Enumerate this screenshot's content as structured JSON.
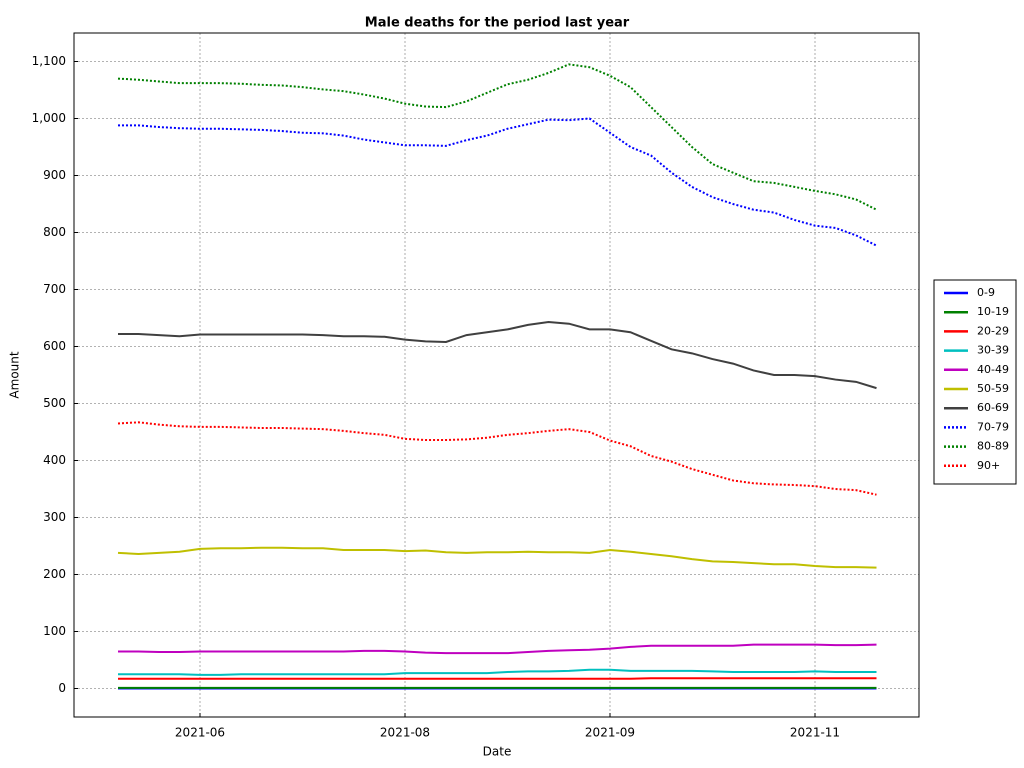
{
  "chart_data": {
    "type": "line",
    "title": "Male deaths for the period last year",
    "x_label": "Date",
    "y_label": "Amount",
    "categories": [
      null,
      null,
      null,
      null,
      "2021-06",
      null,
      null,
      null,
      null,
      null,
      null,
      null,
      null,
      null,
      "2021-08",
      null,
      null,
      null,
      null,
      null,
      null,
      null,
      null,
      null,
      "2021-09",
      null,
      null,
      null,
      null,
      null,
      null,
      null,
      null,
      null,
      "2021-11",
      null,
      null,
      null
    ],
    "ylim": [
      -50,
      1150
    ],
    "yticks": [
      0,
      100,
      200,
      300,
      400,
      500,
      600,
      700,
      800,
      900,
      {
        "value": 1000,
        "label": "1,000"
      },
      {
        "value": 1100,
        "label": "1,100"
      }
    ],
    "grid": true,
    "legend": "right",
    "series": [
      {
        "name": "0-9",
        "color": "#0000ff",
        "style": "solid",
        "values": [
          0,
          0,
          0,
          0,
          0,
          0,
          0,
          0,
          0,
          0,
          0,
          0,
          0,
          0,
          0,
          0,
          0,
          0,
          0,
          0,
          0,
          0,
          0,
          0,
          0,
          0,
          0,
          0,
          0,
          0,
          0,
          0,
          0,
          0,
          0,
          0,
          0,
          0
        ]
      },
      {
        "name": "10-19",
        "color": "#008000",
        "style": "solid",
        "values": [
          1,
          1,
          1,
          1,
          1,
          1,
          1,
          1,
          1,
          1,
          1,
          1,
          1,
          1,
          1,
          1,
          1,
          1,
          1,
          1,
          1,
          1,
          1,
          1,
          1,
          1,
          1,
          1,
          1,
          1,
          1,
          1,
          1,
          1,
          1,
          1,
          1,
          1
        ]
      },
      {
        "name": "20-29",
        "color": "#ff0000",
        "style": "solid",
        "values": [
          17,
          17,
          17,
          17,
          17,
          17,
          17,
          17,
          17,
          17,
          17,
          17,
          17,
          17,
          17,
          17,
          17,
          17,
          17,
          17,
          17,
          17,
          17,
          17,
          17,
          17,
          18,
          18,
          18,
          18,
          18,
          18,
          18,
          18,
          18,
          18,
          18,
          18
        ]
      },
      {
        "name": "30-39",
        "color": "#00bfbf",
        "style": "solid",
        "values": [
          25,
          25,
          25,
          25,
          24,
          24,
          25,
          25,
          25,
          25,
          25,
          25,
          25,
          25,
          27,
          27,
          27,
          27,
          27,
          29,
          30,
          30,
          31,
          33,
          33,
          31,
          31,
          31,
          31,
          30,
          29,
          29,
          29,
          29,
          30,
          29,
          29,
          29
        ]
      },
      {
        "name": "40-49",
        "color": "#bf00bf",
        "style": "solid",
        "values": [
          65,
          65,
          64,
          64,
          65,
          65,
          65,
          65,
          65,
          65,
          65,
          65,
          66,
          66,
          65,
          63,
          62,
          62,
          62,
          62,
          64,
          66,
          67,
          68,
          70,
          73,
          75,
          75,
          75,
          75,
          75,
          77,
          77,
          77,
          77,
          76,
          76,
          77
        ]
      },
      {
        "name": "50-59",
        "color": "#bfbf00",
        "style": "solid",
        "values": [
          238,
          236,
          238,
          240,
          245,
          246,
          246,
          247,
          247,
          246,
          246,
          243,
          243,
          243,
          241,
          242,
          239,
          238,
          239,
          239,
          240,
          239,
          239,
          238,
          243,
          240,
          236,
          232,
          227,
          223,
          222,
          220,
          218,
          218,
          215,
          213,
          213,
          212
        ]
      },
      {
        "name": "60-69",
        "color": "#404040",
        "style": "solid",
        "values": [
          622,
          622,
          620,
          618,
          621,
          621,
          621,
          621,
          621,
          621,
          620,
          618,
          618,
          617,
          612,
          609,
          608,
          620,
          625,
          630,
          638,
          643,
          640,
          630,
          630,
          625,
          610,
          595,
          588,
          578,
          570,
          558,
          550,
          550,
          548,
          542,
          538,
          527
        ]
      },
      {
        "name": "70-79",
        "color": "#0000ff",
        "style": "dotted",
        "values": [
          988,
          988,
          985,
          983,
          982,
          982,
          981,
          980,
          978,
          975,
          974,
          970,
          963,
          958,
          953,
          953,
          952,
          962,
          970,
          982,
          990,
          998,
          997,
          1000,
          975,
          950,
          935,
          905,
          880,
          862,
          850,
          840,
          835,
          822,
          812,
          808,
          795,
          777
        ]
      },
      {
        "name": "80-89",
        "color": "#008000",
        "style": "dotted",
        "values": [
          1070,
          1068,
          1065,
          1062,
          1062,
          1062,
          1061,
          1059,
          1058,
          1055,
          1051,
          1048,
          1042,
          1035,
          1026,
          1021,
          1020,
          1030,
          1045,
          1060,
          1068,
          1080,
          1095,
          1090,
          1075,
          1055,
          1020,
          985,
          950,
          920,
          905,
          890,
          887,
          880,
          873,
          867,
          858,
          840
        ]
      },
      {
        "name": "90+",
        "color": "#ff0000",
        "style": "dotted",
        "values": [
          465,
          467,
          463,
          460,
          459,
          459,
          458,
          457,
          457,
          456,
          455,
          452,
          448,
          445,
          438,
          436,
          436,
          437,
          440,
          445,
          448,
          452,
          455,
          450,
          435,
          425,
          408,
          398,
          385,
          375,
          365,
          360,
          358,
          357,
          355,
          350,
          348,
          340
        ]
      }
    ]
  }
}
